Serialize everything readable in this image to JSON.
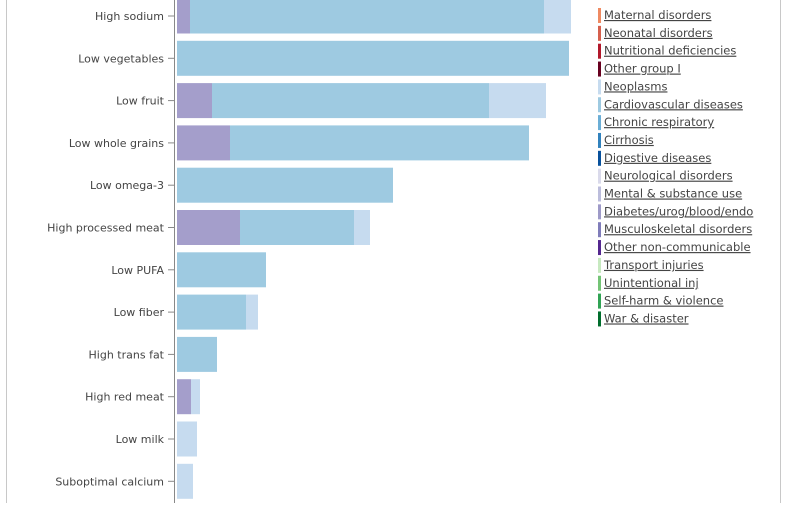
{
  "colors": {
    "frame": "#c8c8c8",
    "axis": "#888888"
  },
  "chart_data": {
    "type": "bar",
    "orientation": "horizontal",
    "stacked": true,
    "categories": [
      "High sodium",
      "Low vegetables",
      "Low fruit",
      "Low whole grains",
      "Low omega-3",
      "High processed meat",
      "Low PUFA",
      "Low fiber",
      "High trans fat",
      "High red meat",
      "Low milk",
      "Suboptimal calcium"
    ],
    "series": [
      {
        "name": "Diabetes/urog/blood/endo",
        "color": "#a49ecb",
        "values": [
          13,
          0,
          35,
          53,
          0,
          63,
          0,
          0,
          0,
          14,
          0,
          0
        ]
      },
      {
        "name": "Cardiovascular diseases",
        "color": "#9ecae1",
        "values": [
          354,
          392,
          277,
          299,
          216,
          114,
          89,
          69,
          40,
          0,
          0,
          0
        ]
      },
      {
        "name": "Neoplasms",
        "color": "#c6dbef",
        "values": [
          27,
          0,
          57,
          0,
          0,
          16,
          0,
          12,
          0,
          9,
          20,
          16
        ]
      }
    ],
    "legend": {
      "placement": "right",
      "entries": [
        {
          "label": "Maternal disorders",
          "color": "#ef8a62"
        },
        {
          "label": "Neonatal disorders",
          "color": "#d6604d"
        },
        {
          "label": "Nutritional deficiencies",
          "color": "#b2182b"
        },
        {
          "label": "Other group I",
          "color": "#67001f"
        },
        {
          "label": "Neoplasms",
          "color": "#c6dbef"
        },
        {
          "label": "Cardiovascular diseases",
          "color": "#9ecae1"
        },
        {
          "label": "Chronic respiratory",
          "color": "#6baed6"
        },
        {
          "label": "Cirrhosis",
          "color": "#3182bd"
        },
        {
          "label": "Digestive diseases",
          "color": "#08519c"
        },
        {
          "label": "Neurological disorders",
          "color": "#dadaeb"
        },
        {
          "label": "Mental & substance use",
          "color": "#bcbddc"
        },
        {
          "label": "Diabetes/urog/blood/endo",
          "color": "#9e9ac8"
        },
        {
          "label": "Musculoskeletal disorders",
          "color": "#807dba"
        },
        {
          "label": "Other non-communicable",
          "color": "#54278f"
        },
        {
          "label": "Transport injuries",
          "color": "#c7e9c0"
        },
        {
          "label": "Unintentional inj",
          "color": "#74c476"
        },
        {
          "label": "Self-harm & violence",
          "color": "#31a354"
        },
        {
          "label": "War & disaster",
          "color": "#006d2c"
        }
      ]
    }
  }
}
